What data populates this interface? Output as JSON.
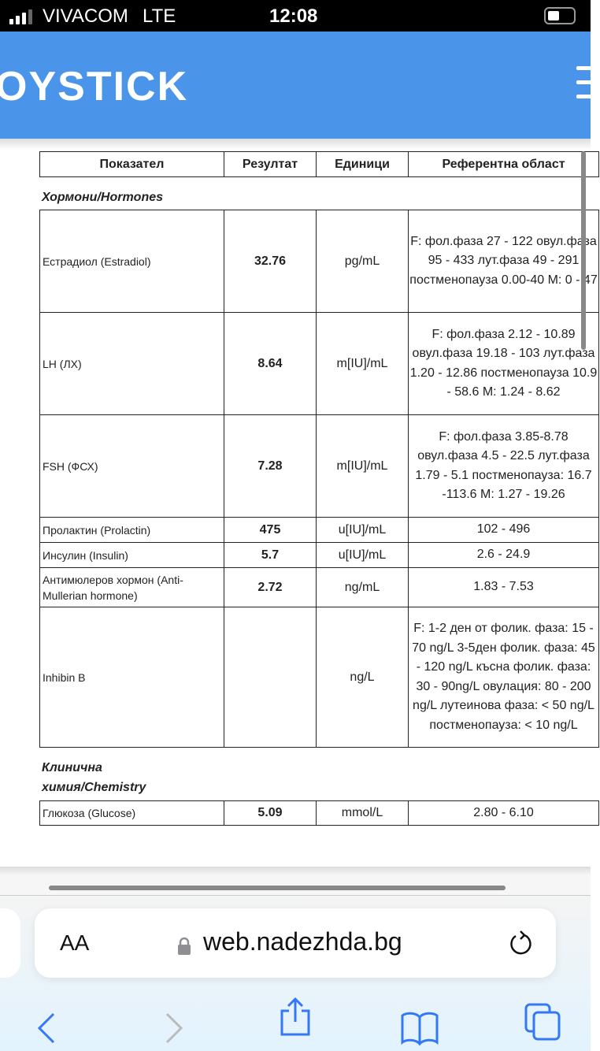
{
  "status_bar": {
    "carrier": "VIVACOM",
    "network": "LTE",
    "time": "12:08"
  },
  "site": {
    "logo_text": "OYSTICK"
  },
  "table": {
    "headers": [
      "Показател",
      "Резултат",
      "Единици",
      "Референтна област"
    ],
    "sections": [
      {
        "title": "Хормони/Hormones",
        "rows": [
          {
            "name": "Естрадиол (Estradiol)",
            "result": "32.76",
            "units": "pg/mL",
            "reference": "F: фол.фаза 27 - 122 овул.фаза 95 - 433 лут.фаза 49 - 291 постменопауза 0.00-40 М: 0 - 47"
          },
          {
            "name": "LH (ЛХ)",
            "result": "8.64",
            "units": "m[IU]/mL",
            "reference": "F: фол.фаза 2.12 - 10.89 овул.фаза 19.18 - 103 лут.фаза 1.20 - 12.86 постменопауза 10.9 - 58.6 М: 1.24 - 8.62"
          },
          {
            "name": "FSH (ФСХ)",
            "result": "7.28",
            "units": "m[IU]/mL",
            "reference": "F: фол.фаза 3.85-8.78 овул.фаза 4.5 - 22.5 лут.фаза 1.79 - 5.1 постменопауза: 16.7 -113.6 М: 1.27 - 19.26"
          },
          {
            "name": "Пролактин (Prolactin)",
            "result": "475",
            "units": "u[IU]/mL",
            "reference": "102 - 496"
          },
          {
            "name": "Инсулин (Insulin)",
            "result": "5.7",
            "units": "u[IU]/mL",
            "reference": "2.6 - 24.9"
          },
          {
            "name": "Антимюлеров хормон (Anti-Mullerian hormone)",
            "result": "2.72",
            "units": "ng/mL",
            "reference": "1.83 - 7.53"
          },
          {
            "name": "Inhibin B",
            "result": "",
            "units": "ng/L",
            "reference": "F: 1-2 ден от фолик. фаза: 15 - 70 ng/L 3-5ден фолик. фаза: 45 - 120 ng/L късна фолик. фаза: 30 - 90ng/L овулация: 80 - 200 ng/L лутеинова фаза: < 50 ng/L постменопауза: < 10 ng/L"
          }
        ]
      },
      {
        "title": "Клинична химия/Chemistry",
        "rows": [
          {
            "name": "Глюкоза (Glucose)",
            "result": "5.09",
            "units": "mmol/L",
            "reference": "2.80 - 6.10"
          }
        ]
      }
    ]
  },
  "browser": {
    "text_size_label": "AA",
    "url": "web.nadezhda.bg",
    "accent": "#3478f6",
    "header_color": "#4a95ea"
  }
}
